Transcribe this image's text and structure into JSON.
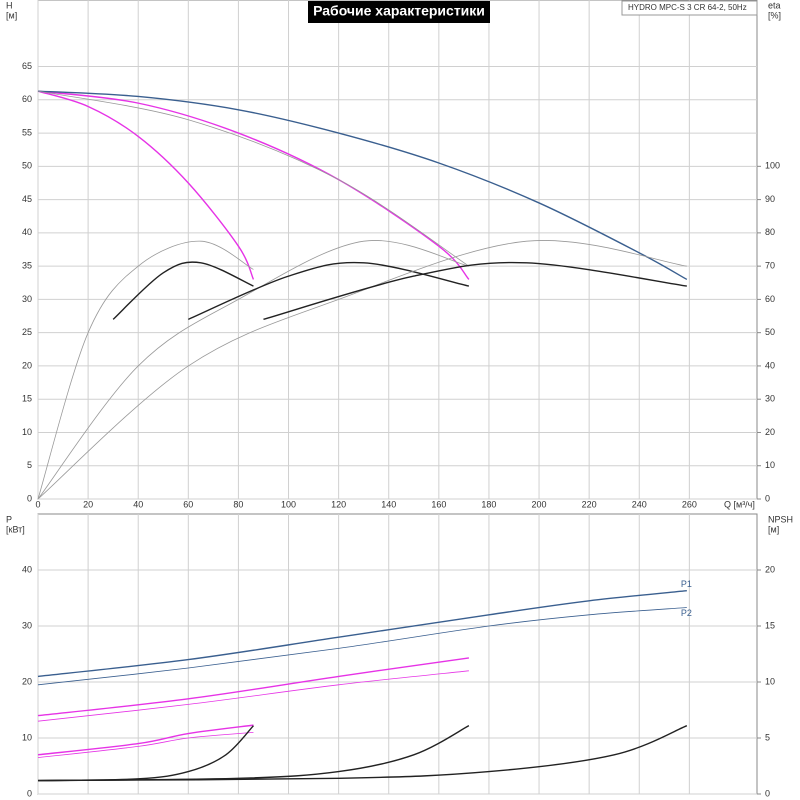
{
  "header": {
    "title": "Рабочие характеристики",
    "model": "HYDRO MPC-S 3 CR 64-2, 50Hz"
  },
  "chart_data": [
    {
      "type": "line",
      "y_label": [
        "H",
        "[м]"
      ],
      "y2_label": [
        "eta",
        "[%]"
      ],
      "x_label": "Q [м³/ч]",
      "xlim": [
        0,
        287
      ],
      "xticks": [
        0,
        20,
        40,
        60,
        80,
        100,
        120,
        140,
        160,
        180,
        200,
        220,
        240,
        260
      ],
      "ylim": [
        0,
        75
      ],
      "yticks": [
        0,
        5,
        10,
        15,
        20,
        25,
        30,
        35,
        40,
        45,
        50,
        55,
        60,
        65
      ],
      "y2lim": [
        0,
        150
      ],
      "y2ticks": [
        0,
        10,
        20,
        30,
        40,
        50,
        60,
        70,
        80,
        90,
        100
      ],
      "grid": true,
      "series": [
        {
          "color": "#e633e6",
          "line_width": 1.4,
          "x": [
            0,
            20,
            40,
            60,
            80,
            86
          ],
          "values": [
            61.3,
            59,
            54.5,
            47.5,
            38,
            33
          ]
        },
        {
          "color": "#e633e6",
          "line_width": 1.4,
          "x": [
            0,
            40,
            80,
            120,
            160,
            172
          ],
          "values": [
            61.3,
            59.5,
            55,
            48,
            38,
            33
          ]
        },
        {
          "color": "#3a5f8f",
          "line_width": 1.4,
          "x": [
            0,
            40,
            80,
            120,
            160,
            200,
            240,
            259
          ],
          "values": [
            61.3,
            60.5,
            58.5,
            55,
            50.5,
            44.5,
            37,
            33
          ]
        },
        {
          "color": "#999999",
          "line_width": 0.8,
          "x": [
            0,
            60,
            120,
            172
          ],
          "values": [
            61.3,
            57,
            48,
            35
          ]
        },
        {
          "color": "#999999",
          "line_width": 0.8,
          "x": [
            0,
            20,
            40,
            65,
            86
          ],
          "values": [
            0,
            50,
            70,
            77.5,
            69
          ],
          "axis": "y2"
        },
        {
          "color": "#222222",
          "line_width": 1.4,
          "x": [
            30,
            50,
            65,
            86
          ],
          "values": [
            54,
            68,
            71,
            64
          ],
          "axis": "y2"
        },
        {
          "color": "#999999",
          "line_width": 0.8,
          "x": [
            0,
            40,
            80,
            130,
            172
          ],
          "values": [
            0,
            40,
            60,
            77.5,
            70
          ],
          "axis": "y2"
        },
        {
          "color": "#222222",
          "line_width": 1.4,
          "x": [
            60,
            100,
            130,
            172
          ],
          "values": [
            54,
            67,
            71,
            64
          ],
          "axis": "y2"
        },
        {
          "color": "#999999",
          "line_width": 0.8,
          "x": [
            0,
            60,
            120,
            195,
            259
          ],
          "values": [
            0,
            40,
            60,
            77.5,
            70
          ],
          "axis": "y2"
        },
        {
          "color": "#222222",
          "line_width": 1.4,
          "x": [
            90,
            150,
            195,
            259
          ],
          "values": [
            54,
            67,
            71,
            64
          ],
          "axis": "y2"
        }
      ]
    },
    {
      "type": "line",
      "y_label": [
        "P",
        "[кВт]"
      ],
      "y2_label": [
        "NPSH",
        "[м]"
      ],
      "xlim": [
        0,
        287
      ],
      "ylim": [
        0,
        50
      ],
      "yticks": [
        0,
        10,
        20,
        30,
        40
      ],
      "y2lim": [
        0,
        25
      ],
      "y2ticks": [
        0,
        5,
        10,
        15,
        20
      ],
      "grid": true,
      "series": [
        {
          "name": "P1",
          "color": "#3a5f8f",
          "line_width": 1.4,
          "x": [
            0,
            60,
            120,
            180,
            220,
            259
          ],
          "values": [
            21,
            24,
            28,
            32,
            34.5,
            36.3
          ]
        },
        {
          "name": "P2",
          "color": "#3a5f8f",
          "line_width": 0.8,
          "x": [
            0,
            60,
            120,
            180,
            220,
            259
          ],
          "values": [
            19.5,
            22.5,
            26,
            30,
            32,
            33.3
          ]
        },
        {
          "color": "#e633e6",
          "line_width": 1.4,
          "x": [
            0,
            60,
            120,
            172
          ],
          "values": [
            14,
            17,
            21,
            24.3
          ]
        },
        {
          "color": "#e633e6",
          "line_width": 0.8,
          "x": [
            0,
            60,
            120,
            172
          ],
          "values": [
            13,
            16,
            19.5,
            22
          ]
        },
        {
          "color": "#e633e6",
          "line_width": 1.4,
          "x": [
            0,
            40,
            60,
            86
          ],
          "values": [
            7,
            9,
            10.8,
            12.3
          ]
        },
        {
          "color": "#e633e6",
          "line_width": 0.8,
          "x": [
            0,
            40,
            60,
            86
          ],
          "values": [
            6.5,
            8.5,
            10,
            11
          ]
        },
        {
          "color": "#222222",
          "line_width": 1.4,
          "x": [
            0,
            40,
            60,
            75,
            86
          ],
          "values": [
            1.2,
            1.35,
            2,
            3.5,
            6.1
          ],
          "axis": "y2"
        },
        {
          "color": "#222222",
          "line_width": 1.4,
          "x": [
            0,
            80,
            120,
            150,
            172
          ],
          "values": [
            1.2,
            1.4,
            2,
            3.5,
            6.1
          ],
          "axis": "y2"
        },
        {
          "color": "#222222",
          "line_width": 1.4,
          "x": [
            0,
            120,
            180,
            230,
            259
          ],
          "values": [
            1.2,
            1.4,
            2,
            3.5,
            6.1
          ],
          "axis": "y2"
        }
      ]
    }
  ]
}
